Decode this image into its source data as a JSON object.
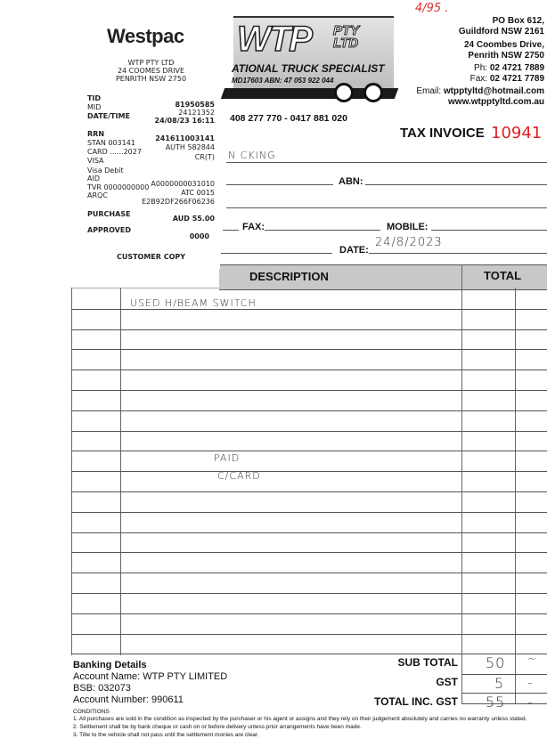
{
  "receipt": {
    "bank_logo": "Westpac",
    "merchant": [
      "WTP PTY LTD",
      "24 COOMES DRIVE",
      "PENRITH  NSW  2750"
    ],
    "tid_label": "TID",
    "mid_label": "MID",
    "datetime_label": "DATE/TIME",
    "tid": "81950585",
    "mid": "24121352",
    "datetime": "24/08/23 16:11",
    "rrn_label": "RRN",
    "rrn": "241611003141",
    "stan": "STAN 003141",
    "auth": "AUTH 582844",
    "card": "CARD ......2027",
    "card_type": "VISA",
    "cr": "CR(T)",
    "card_desc": "Visa Debit",
    "aid_label": "AID",
    "aid": "A0000000031010",
    "tvr": "TVR 0000000000",
    "atc": "ATC 0015",
    "arqc_label": "ARQC",
    "arqc": "E2B92DF266F06236",
    "purchase_label": "PURCHASE",
    "purchase": "AUD 55.00",
    "approved_label": "APPROVED",
    "approved_code": "0000",
    "copy": "CUSTOMER COPY"
  },
  "company": {
    "logo_text": "WTP",
    "logo_sub": "PTY LTD",
    "tagline": "ATIONAL TRUCK SPECIALIST",
    "md_abn": "MD17603   ABN: 47 053 922 044",
    "phones": "408 277 770 - 0417 881 020",
    "po_box": "PO Box 612,",
    "po_city": "Guildford NSW 2161",
    "street": "24 Coombes Drive,",
    "street_city": "Penrith NSW 2750",
    "ph_label": "Ph:",
    "ph": "02 4721 7889",
    "fax_label": "Fax:",
    "fax": "02 4721 7789",
    "email_label": "Email:",
    "email": "wtpptyltd@hotmail.com",
    "web": "www.wtpptyltd.com.au"
  },
  "handwritten_note": "4/95 .",
  "invoice": {
    "title": "TAX INVOICE",
    "number": "10941",
    "number_color": "#e02020"
  },
  "form": {
    "name_value": "N CKING",
    "abn_label": "ABN:",
    "fax_label": "FAX:",
    "mobile_label": "MOBILE:",
    "date_label": "DATE:",
    "date_value": "24/8/2023"
  },
  "table": {
    "headers": {
      "description": "DESCRIPTION",
      "total": "TOTAL"
    },
    "header_bg": "#c8c8c8",
    "item": "USED H/BEAM SWITCH",
    "note_line1": "PAID",
    "note_line2": "C/CARD"
  },
  "banking": {
    "title": "Banking Details",
    "account_name": "Account Name: WTP PTY LIMITED",
    "bsb": "BSB: 032073",
    "account_number": "Account Number: 990611"
  },
  "totals": {
    "subtotal_label": "SUB TOTAL",
    "subtotal": "50",
    "subtotal_cents": "~",
    "gst_label": "GST",
    "gst": "5",
    "gst_cents": "–",
    "total_label": "TOTAL INC. GST",
    "total": "55",
    "total_cents": "–"
  },
  "conditions": {
    "title": "CONDITIONS",
    "items": [
      "1.  All purchases are sold in the condition as inspected by the purchaser or his agent or assigns and they rely on their judgement absolutely and carries no warranty unless stated.",
      "2.  Settlement shall be by bank cheque or cash on or before delivery unless prior arrangements have been made.",
      "3.  Title to the vehicle shall not pass until the settlement monies are clear."
    ]
  }
}
